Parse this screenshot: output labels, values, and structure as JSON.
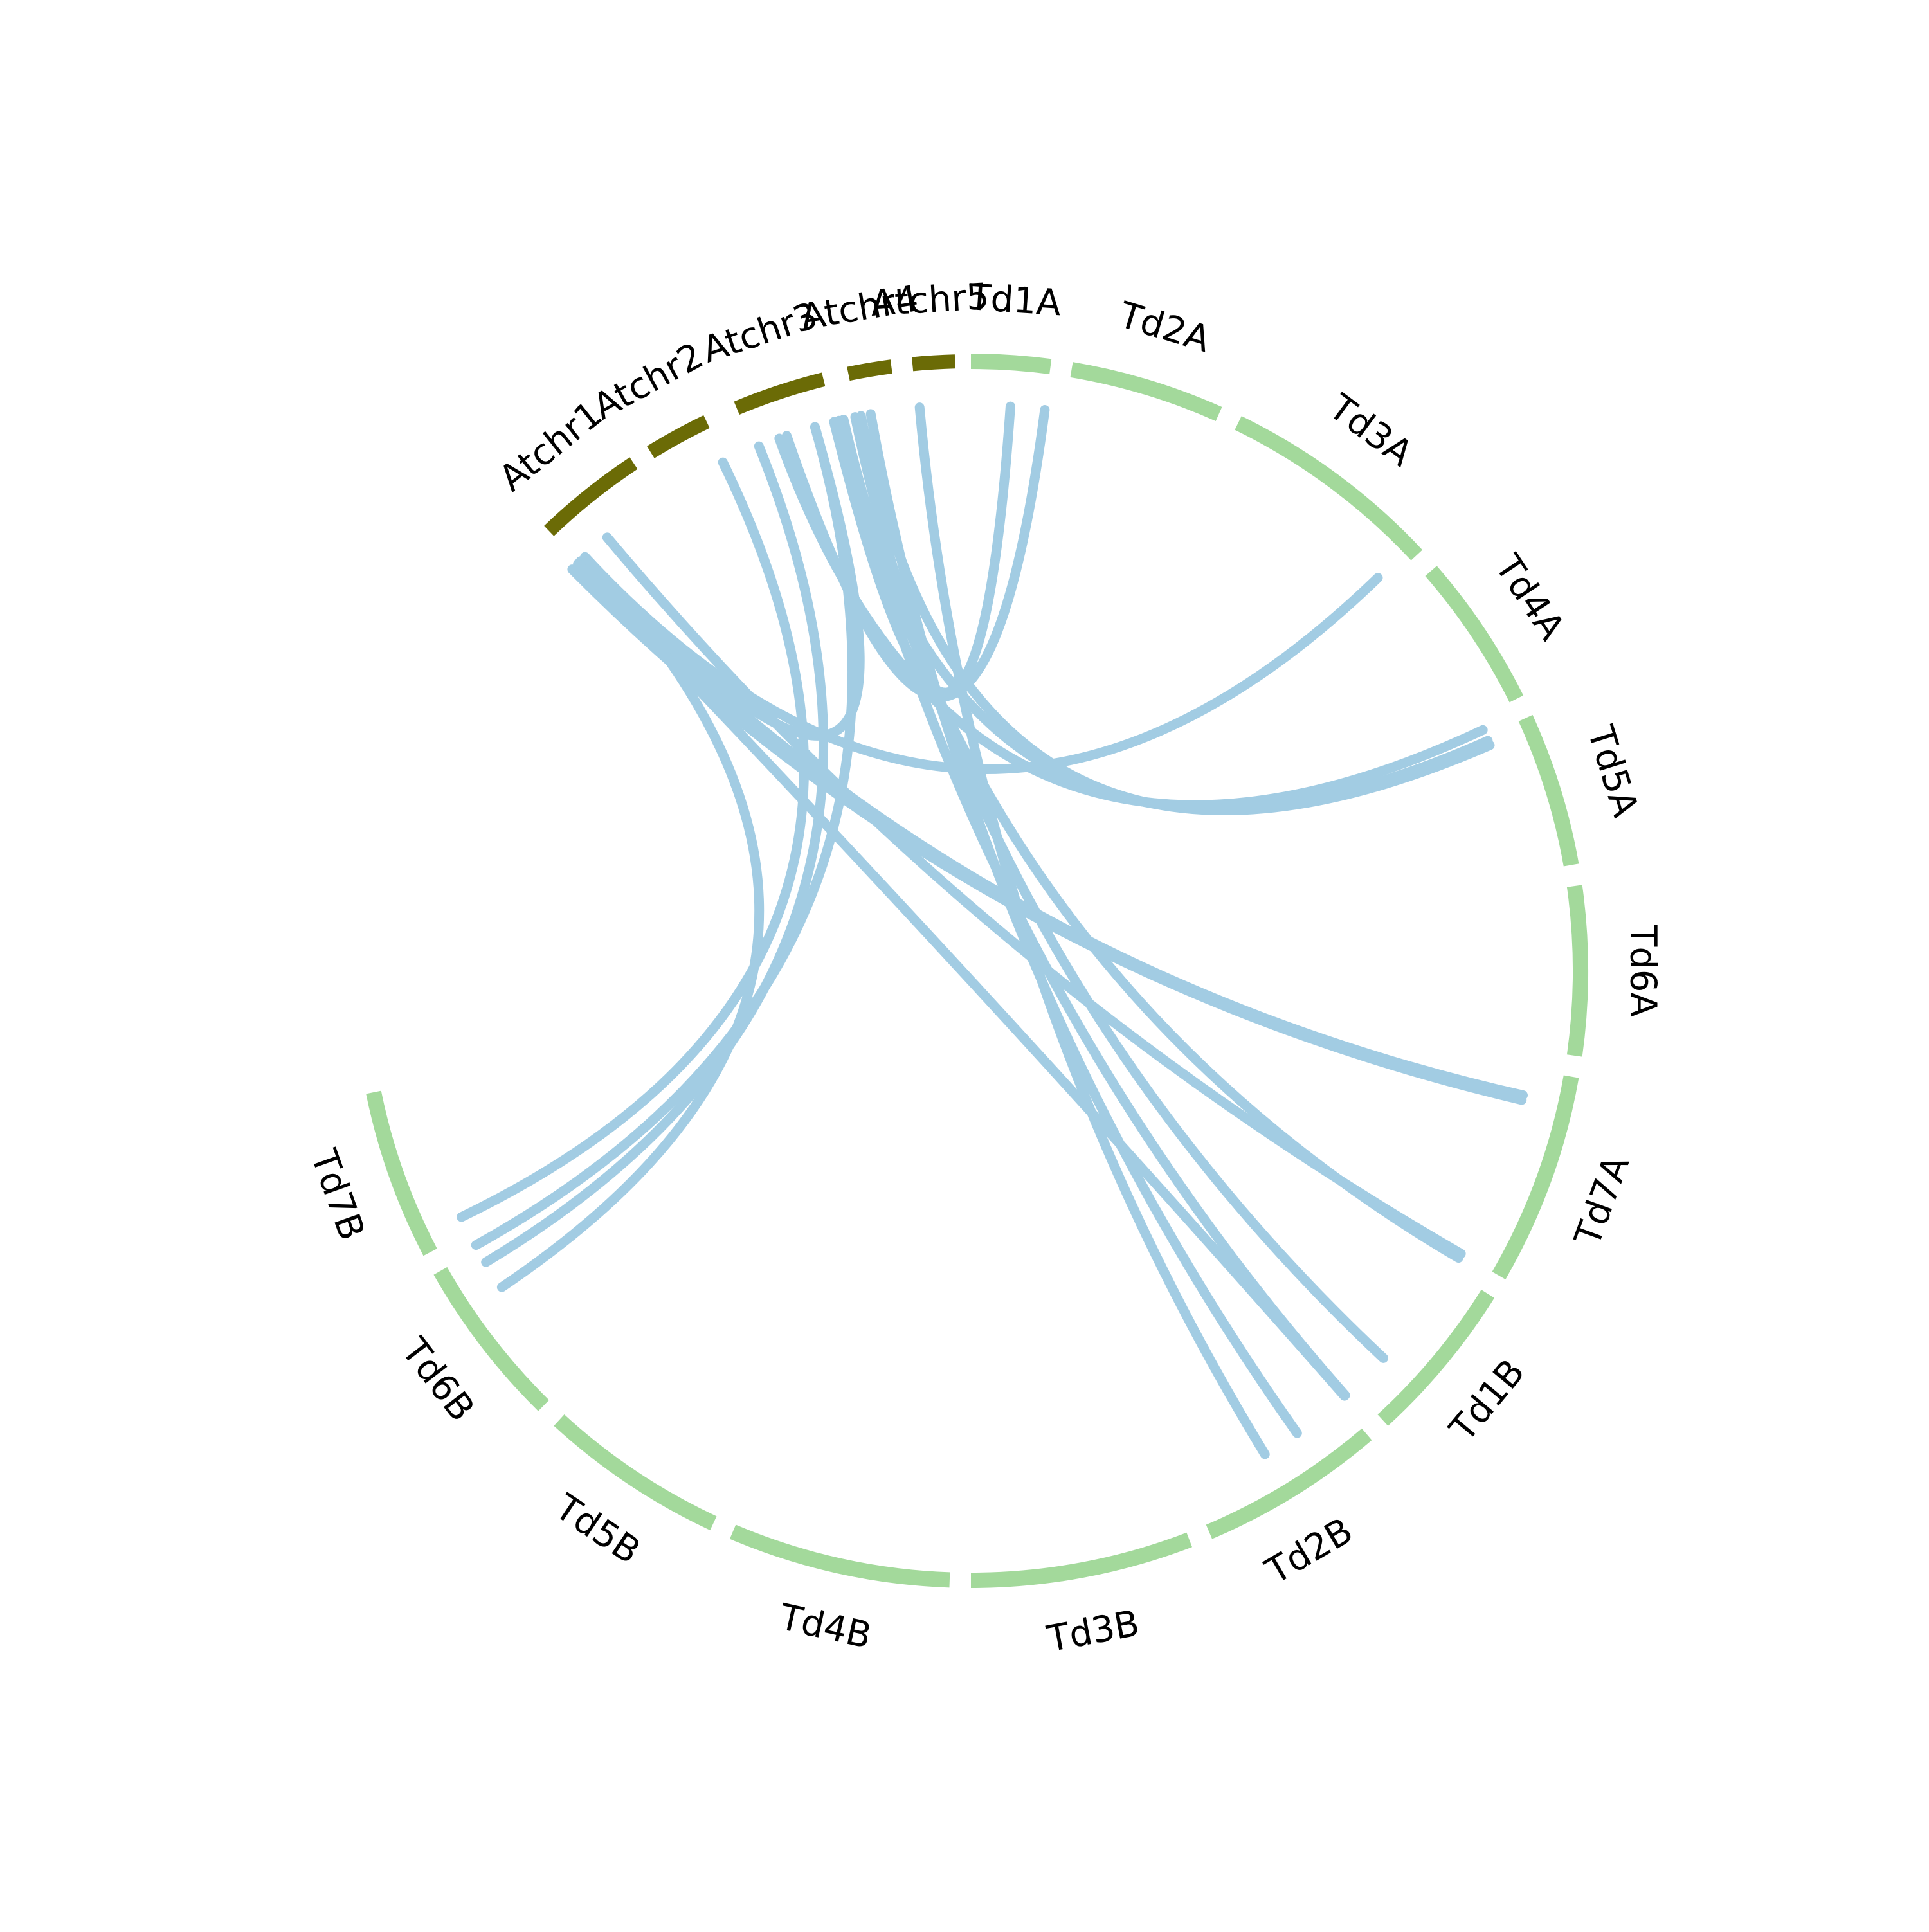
{
  "colors": {
    "athaliana_chrom": "#6b6b06",
    "wheat_chrom": "#a3d99b",
    "link": "#a2cce3",
    "label": "#000000"
  },
  "chromosomes": [
    {
      "name": "Atchr1",
      "group": "athaliana"
    },
    {
      "name": "Atchr2",
      "group": "athaliana"
    },
    {
      "name": "Atchr3",
      "group": "athaliana"
    },
    {
      "name": "Atchr4",
      "group": "athaliana"
    },
    {
      "name": "Atchr5",
      "group": "athaliana"
    },
    {
      "name": "Td1A",
      "group": "wheat"
    },
    {
      "name": "Td2A",
      "group": "wheat"
    },
    {
      "name": "Td3A",
      "group": "wheat"
    },
    {
      "name": "Td4A",
      "group": "wheat"
    },
    {
      "name": "Td5A",
      "group": "wheat"
    },
    {
      "name": "Td6A",
      "group": "wheat"
    },
    {
      "name": "Td7A",
      "group": "wheat"
    },
    {
      "name": "Td1B",
      "group": "wheat"
    },
    {
      "name": "Td2B",
      "group": "wheat"
    },
    {
      "name": "Td3B",
      "group": "wheat"
    },
    {
      "name": "Td4B",
      "group": "wheat"
    },
    {
      "name": "Td5B",
      "group": "wheat"
    },
    {
      "name": "Td6B",
      "group": "wheat"
    },
    {
      "name": "Td7B",
      "group": "wheat"
    }
  ]
}
